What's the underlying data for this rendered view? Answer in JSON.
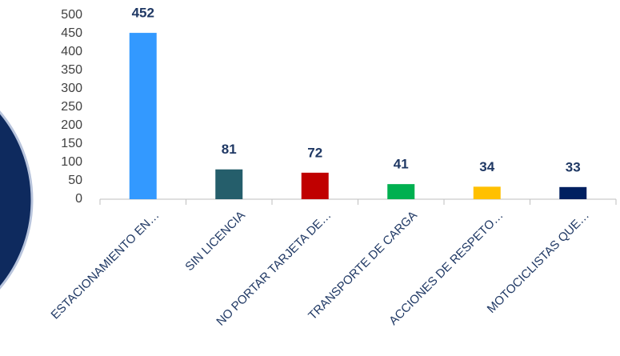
{
  "chart_data": {
    "type": "bar",
    "categories": [
      "ESTACIONAMIENTO EN…",
      "SIN LICENCIA",
      "NO PORTAR TARJETA DE…",
      "TRANSPORTE DE CARGA",
      "ACCIONES DE RESPETO…",
      "MOTOCICLISTAS QUE…"
    ],
    "values": [
      452,
      81,
      72,
      41,
      34,
      33
    ],
    "colors": [
      "#3399ff",
      "#255e6b",
      "#c00000",
      "#00b050",
      "#ffc000",
      "#002060"
    ],
    "ylim": [
      0,
      500
    ],
    "yticks": [
      0,
      50,
      100,
      150,
      200,
      250,
      300,
      350,
      400,
      450,
      500
    ],
    "grid": false
  }
}
